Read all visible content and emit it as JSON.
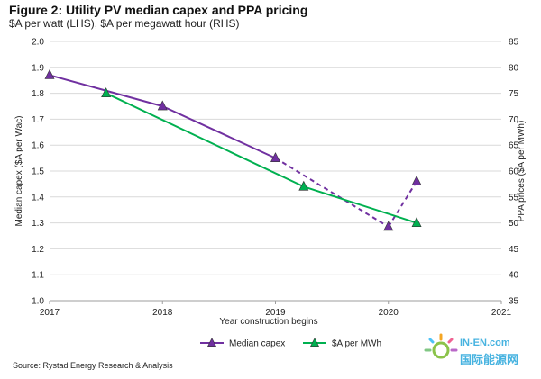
{
  "title": "Figure 2: Utility PV median capex and PPA pricing",
  "subtitle": "$A per watt (LHS), $A per megawatt hour (RHS)",
  "source": "Source: Rystad Energy Research & Analysis",
  "watermark": {
    "url_text": "IN-EN.com",
    "cn_text": "国际能源网",
    "icon": "sun-logo-icon"
  },
  "chart_data": {
    "type": "line",
    "xlabel": "Year construction begins",
    "ylabel_left": "Median capex ($A per Wac)",
    "ylabel_right": "PPA prices ($A per MWh)",
    "xlim": [
      2017,
      2021
    ],
    "ylim_left": [
      1.0,
      2.0
    ],
    "ylim_right": [
      35,
      85
    ],
    "x_ticks": [
      "2017",
      "2018",
      "2019",
      "2020",
      "2021"
    ],
    "y_ticks_left": [
      "1.0",
      "1.1",
      "1.2",
      "1.3",
      "1.4",
      "1.5",
      "1.6",
      "1.7",
      "1.8",
      "1.9",
      "2.0"
    ],
    "y_ticks_right": [
      "35",
      "40",
      "45",
      "50",
      "55",
      "60",
      "65",
      "70",
      "75",
      "80",
      "85"
    ],
    "grid": "horizontal",
    "legend_position": "bottom",
    "series": [
      {
        "name": "Median capex",
        "axis": "left",
        "color": "#7030a0",
        "marker": "triangle",
        "points": [
          {
            "x": 2017.0,
            "y": 1.87
          },
          {
            "x": 2018.0,
            "y": 1.75
          },
          {
            "x": 2019.0,
            "y": 1.55
          },
          {
            "x": 2020.0,
            "y": 1.285
          },
          {
            "x": 2020.25,
            "y": 1.46
          }
        ],
        "dashed_from_index": 3
      },
      {
        "name": "$A per MWh",
        "axis": "right",
        "color": "#00b050",
        "marker": "triangle",
        "points": [
          {
            "x": 2017.5,
            "y": 75
          },
          {
            "x": 2019.25,
            "y": 57
          },
          {
            "x": 2020.25,
            "y": 50
          }
        ],
        "dashed_from_index": null
      }
    ]
  }
}
